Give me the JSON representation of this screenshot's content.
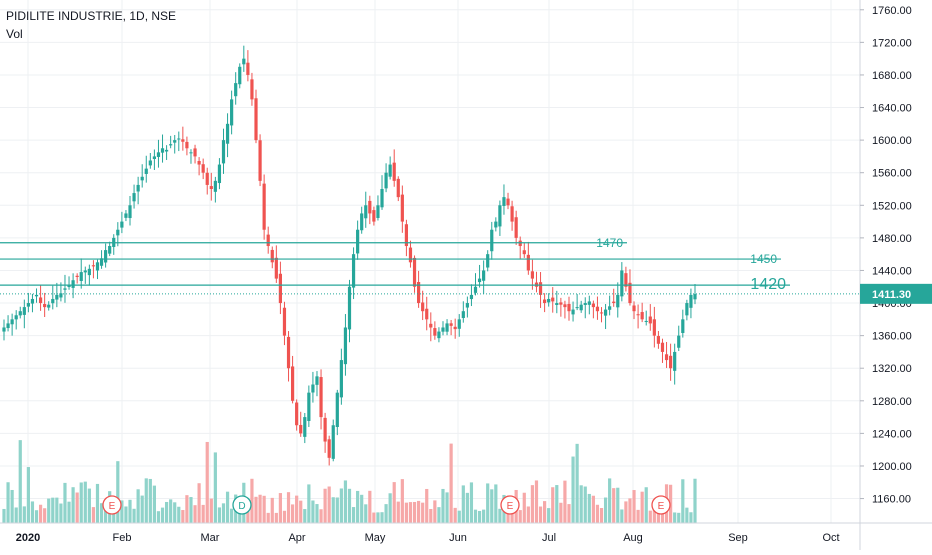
{
  "header": {
    "symbol_line": "PIDILITE INDUSTRIE, 1D, NSE",
    "volume_label": "Vol"
  },
  "price_badge": {
    "value": "1411.30",
    "color": "#26a69a"
  },
  "colors": {
    "up": "#26a69a",
    "down": "#ef5350",
    "vol_up": "#8fd3ca",
    "vol_down": "#f6a8a8",
    "grid": "#eef0f3"
  },
  "chart_data": {
    "type": "candlestick",
    "y_axis": {
      "min": 1130,
      "max": 1772,
      "ticks": [
        1160,
        1200,
        1240,
        1280,
        1320,
        1360,
        1400,
        1440,
        1480,
        1520,
        1560,
        1600,
        1640,
        1680,
        1720,
        1760
      ]
    },
    "x_axis": {
      "labels": [
        "2020",
        "Feb",
        "Mar",
        "Apr",
        "May",
        "Jun",
        "Jul",
        "Aug",
        "Sep",
        "Oct"
      ]
    },
    "last_price": 1411.3,
    "horizontal_lines": [
      {
        "label": "1470",
        "price": 1474
      },
      {
        "label": "1450",
        "price": 1454
      },
      {
        "label": "1420",
        "price": 1422
      }
    ],
    "earnings_markers": [
      {
        "label": "E",
        "month": "Feb"
      },
      {
        "label": "D",
        "month": "Mar"
      },
      {
        "label": "E",
        "month": "Jun"
      },
      {
        "label": "E",
        "month": "Aug"
      }
    ],
    "closes_approx": [
      1370,
      1375,
      1380,
      1385,
      1390,
      1395,
      1400,
      1405,
      1410,
      1400,
      1395,
      1398,
      1405,
      1410,
      1412,
      1418,
      1422,
      1428,
      1432,
      1438,
      1440,
      1442,
      1445,
      1450,
      1455,
      1465,
      1470,
      1480,
      1490,
      1500,
      1510,
      1520,
      1535,
      1545,
      1555,
      1565,
      1575,
      1580,
      1585,
      1590,
      1588,
      1595,
      1600,
      1602,
      1598,
      1590,
      1585,
      1580,
      1570,
      1560,
      1545,
      1540,
      1550,
      1570,
      1600,
      1620,
      1650,
      1670,
      1690,
      1700,
      1680,
      1650,
      1600,
      1550,
      1490,
      1470,
      1450,
      1430,
      1400,
      1360,
      1320,
      1280,
      1250,
      1240,
      1260,
      1290,
      1300,
      1310,
      1260,
      1230,
      1210,
      1250,
      1290,
      1330,
      1370,
      1420,
      1460,
      1490,
      1510,
      1520,
      1510,
      1500,
      1520,
      1540,
      1560,
      1570,
      1550,
      1530,
      1500,
      1470,
      1450,
      1420,
      1400,
      1390,
      1380,
      1370,
      1360,
      1365,
      1370,
      1375,
      1372,
      1368,
      1380,
      1390,
      1400,
      1410,
      1420,
      1430,
      1440,
      1460,
      1490,
      1500,
      1520,
      1530,
      1520,
      1500,
      1480,
      1470,
      1460,
      1440,
      1430,
      1420,
      1410,
      1400,
      1405,
      1402,
      1400,
      1398,
      1395,
      1390,
      1392,
      1395,
      1398,
      1400,
      1402,
      1395,
      1390,
      1388,
      1392,
      1396,
      1400,
      1410,
      1440,
      1420,
      1400,
      1390,
      1385,
      1380,
      1378,
      1375,
      1360,
      1350,
      1340,
      1330,
      1320,
      1340,
      1360,
      1380,
      1400,
      1410,
      1411
    ]
  }
}
